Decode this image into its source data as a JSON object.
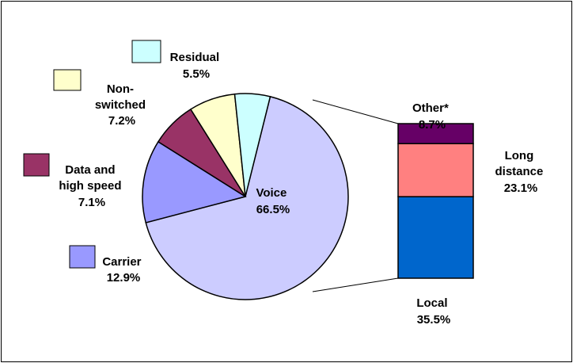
{
  "chart_data": [
    {
      "type": "pie",
      "slices": [
        {
          "name": "Voice",
          "value": 66.5,
          "label": "Voice",
          "pct": "66.5%",
          "color": "#CCCCFF"
        },
        {
          "name": "Carrier",
          "value": 12.9,
          "label": "Carrier",
          "pct": "12.9%",
          "color": "#9999FF"
        },
        {
          "name": "Data and high speed",
          "value": 7.1,
          "label": "Data and high speed",
          "pct": "7.1%",
          "color": "#993366"
        },
        {
          "name": "Non-switched",
          "value": 7.2,
          "label": "Non-switched",
          "pct": "7.2%",
          "color": "#FFFFCC"
        },
        {
          "name": "Residual",
          "value": 5.5,
          "label": "Residual",
          "pct": "5.5%",
          "color": "#CCFFFF"
        }
      ]
    },
    {
      "type": "bar",
      "stacked": true,
      "of_slice": "Voice",
      "segments": [
        {
          "name": "Local",
          "value": 35.5,
          "pct": "35.5%",
          "color": "#0066CC"
        },
        {
          "name": "Long distance",
          "value": 23.1,
          "pct": "23.1%",
          "color": "#FF8080"
        },
        {
          "name": "Other*",
          "value": 8.7,
          "pct": "8.7%",
          "color": "#660066"
        }
      ]
    }
  ],
  "labels": {
    "voice": [
      "Voice",
      "66.5%"
    ],
    "carrier": [
      "Carrier",
      "12.9%"
    ],
    "data": [
      "Data and",
      "high speed",
      "7.1%"
    ],
    "nonswitched": [
      "Non-",
      "switched",
      "7.2%"
    ],
    "residual": [
      "Residual",
      "5.5%"
    ],
    "other": [
      "Other*",
      "8.7%"
    ],
    "long": [
      "Long",
      "distance",
      "23.1%"
    ],
    "local": [
      "Local",
      "35.5%"
    ]
  }
}
